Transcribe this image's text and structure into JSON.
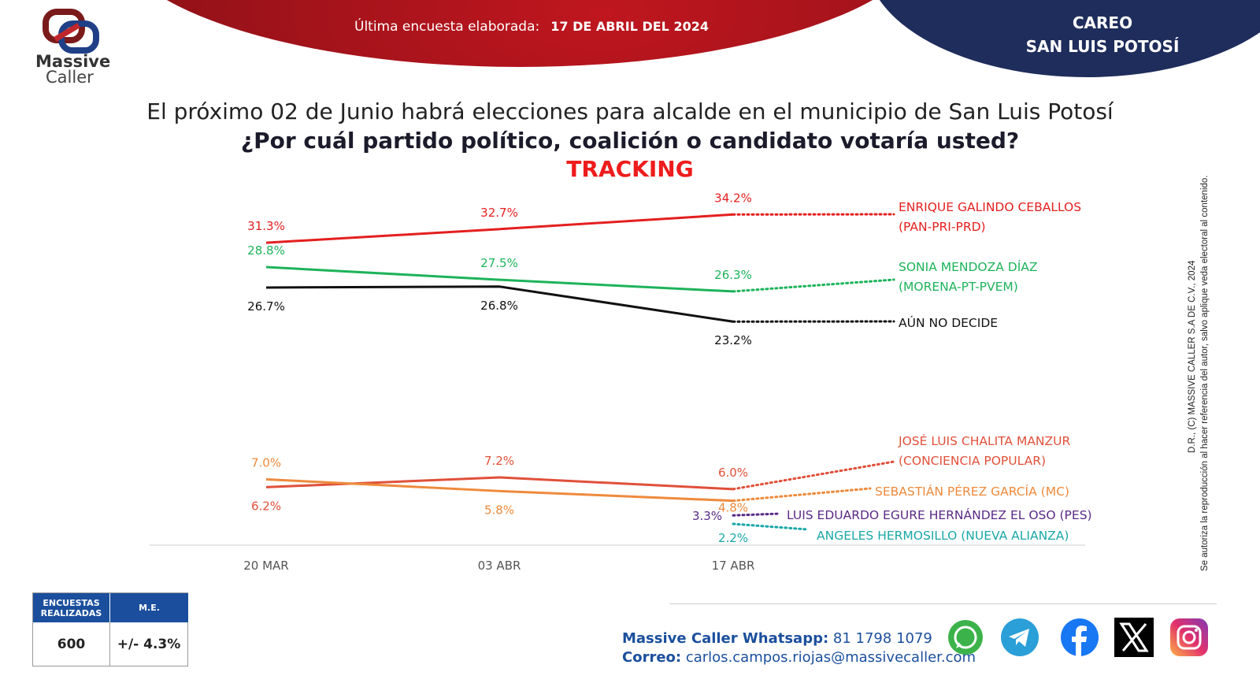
{
  "header": {
    "last_survey_label": "Última encuesta elaborada:",
    "last_survey_date": "17 DE ABRIL DEL 2024",
    "careo_line1": "CAREO",
    "careo_line2": "SAN LUIS POTOSÍ",
    "logo_line1": "Massive",
    "logo_line2": "Caller",
    "colors": {
      "red": "#b0151d",
      "blue": "#1f2d5c"
    }
  },
  "question": {
    "line1": "El próximo 02 de Junio habrá elecciones para alcalde en el municipio de San Luis Potosí",
    "line2": "¿Por cuál partido político, coalición o candidato votaría usted?",
    "line3": "TRACKING"
  },
  "chart_data": {
    "type": "line",
    "categories": [
      "20 MAR",
      "03 ABR",
      "17 ABR"
    ],
    "grid": false,
    "ylim": [
      0,
      35
    ],
    "series": [
      {
        "name": "ENRIQUE GALINDO CEBALLOS (PAN-PRI-PRD)",
        "name_line1": "ENRIQUE GALINDO CEBALLOS",
        "name_line2": "(PAN-PRI-PRD)",
        "color": "#e41f1f",
        "values": [
          31.3,
          32.7,
          34.2
        ],
        "labels": [
          "31.3%",
          "32.7%",
          "34.2%"
        ]
      },
      {
        "name": "SONIA MENDOZA DÍAZ (MORENA-PT-PVEM)",
        "name_line1": "SONIA MENDOZA DÍAZ",
        "name_line2": "(MORENA-PT-PVEM)",
        "color": "#1db35a",
        "values": [
          28.8,
          27.5,
          26.3
        ],
        "labels": [
          "28.8%",
          "27.5%",
          "26.3%"
        ]
      },
      {
        "name": "AÚN NO DECIDE",
        "name_line1": "AÚN NO DECIDE",
        "name_line2": "",
        "color": "#111111",
        "values": [
          26.7,
          26.8,
          23.2
        ],
        "labels": [
          "26.7%",
          "26.8%",
          "23.2%"
        ]
      },
      {
        "name": "JOSÉ LUIS CHALITA MANZUR (CONCIENCIA POPULAR)",
        "name_line1": "JOSÉ LUIS CHALITA MANZUR",
        "name_line2": "(CONCIENCIA POPULAR)",
        "color": "#e0503a",
        "values": [
          6.2,
          7.2,
          6.0
        ],
        "labels": [
          "6.2%",
          "7.2%",
          "6.0%"
        ]
      },
      {
        "name": "SEBASTIÁN PÉREZ GARCÍA (MC)",
        "name_line1": "SEBASTIÁN PÉREZ GARCÍA (MC)",
        "name_line2": "",
        "color": "#ee8a3c",
        "values": [
          7.0,
          5.8,
          4.8
        ],
        "labels": [
          "7.0%",
          "5.8%",
          "4.8%"
        ]
      },
      {
        "name": "LUIS EDUARDO EGURE HERNÁNDEZ EL OSO (PES)",
        "name_line1": "LUIS EDUARDO EGURE HERNÁNDEZ EL OSO (PES)",
        "name_line2": "",
        "color": "#5a2a86",
        "values": [
          null,
          null,
          3.3
        ],
        "labels": [
          "",
          "",
          "3.3%"
        ]
      },
      {
        "name": "ANGELES HERMOSILLO (NUEVA ALIANZA)",
        "name_line1": "ANGELES HERMOSILLO (NUEVA ALIANZA)",
        "name_line2": "",
        "color": "#1ba7a7",
        "values": [
          null,
          null,
          2.2
        ],
        "labels": [
          "",
          "",
          "2.2%"
        ]
      }
    ]
  },
  "side_note": {
    "line1": "D.R., (C) MASSIVE CALLER S.A DE C.V., 2024",
    "line2": "Se autoriza la reproducción al hacer referencia del autor, salvo aplique veda electoral al contenido."
  },
  "summary_table": {
    "col1_header": "ENCUESTAS REALIZADAS",
    "col2_header": "M.E.",
    "col1_value": "600",
    "col2_value": "+/- 4.3%"
  },
  "footer": {
    "whatsapp_label": "Massive Caller Whatsapp:",
    "whatsapp_number": "81 1798 1079",
    "email_label": "Correo:",
    "email": "carlos.campos.riojas@massivecaller.com",
    "social_icons": [
      "whatsapp-icon",
      "telegram-icon",
      "facebook-icon",
      "x-icon",
      "instagram-icon"
    ]
  }
}
